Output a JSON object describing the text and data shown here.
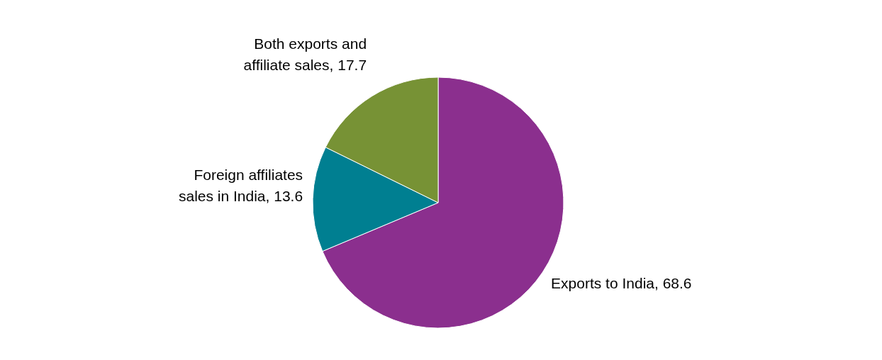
{
  "chart_data": {
    "type": "pie",
    "categories": [
      "Exports to India",
      "Foreign affiliates sales in India",
      "Both exports and affiliate sales"
    ],
    "values": [
      68.6,
      13.6,
      17.7
    ],
    "value_labels": [
      ", 68.6",
      ", 13.6",
      ", 17.7"
    ],
    "colors": [
      "#8b2f8e",
      "#007f91",
      "#779235"
    ]
  }
}
